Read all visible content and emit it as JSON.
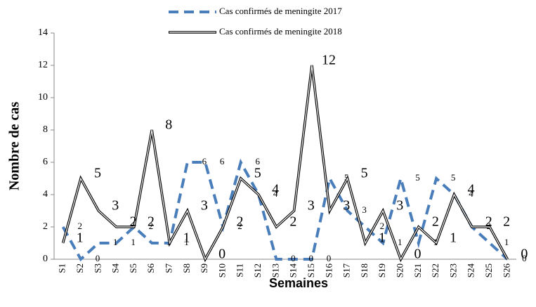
{
  "chart_data": {
    "type": "line",
    "x_label": "Semaines",
    "y_label": "Nombre de cas",
    "categories": [
      "S1",
      "S2",
      "S3",
      "S4",
      "S5",
      "S6",
      "S7",
      "S8",
      "S9",
      "S10",
      "S11",
      "S12",
      "S13",
      "S14",
      "S15",
      "S16",
      "S17",
      "S18",
      "S19",
      "S20",
      "S21",
      "S22",
      "S23",
      "S24",
      "S25",
      "S26"
    ],
    "series": [
      {
        "name": "Cas confirmés de meningite 2017",
        "color": "#4a7ebb",
        "dash": true,
        "values": [
          2,
          0,
          1,
          1,
          2,
          1,
          1,
          6,
          6,
          2,
          6,
          4,
          0,
          0,
          0,
          5,
          3,
          2,
          1,
          5,
          1,
          5,
          4,
          2,
          1,
          0
        ]
      },
      {
        "name": "Cas confirmés de meningite 2018",
        "color": "#000000",
        "dash": false,
        "values": [
          1,
          5,
          3,
          2,
          2,
          8,
          1,
          3,
          0,
          2,
          5,
          4,
          2,
          3,
          12,
          3,
          5,
          1,
          3,
          0,
          2,
          1,
          4,
          2,
          2,
          0
        ]
      }
    ],
    "ylim": [
      0,
      14
    ],
    "yticks": [
      0,
      2,
      4,
      6,
      8,
      10,
      12,
      14
    ]
  }
}
